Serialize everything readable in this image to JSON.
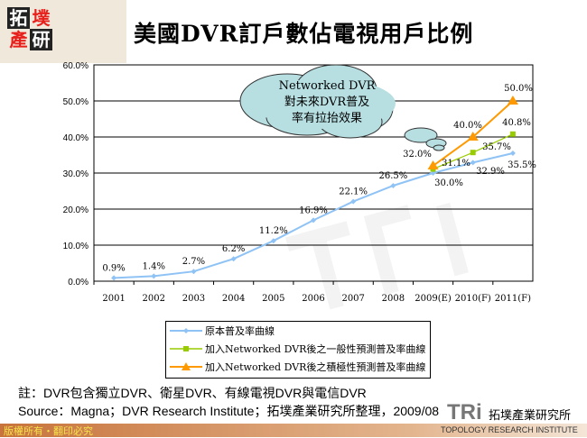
{
  "header": {
    "title": "美國DVR訂戶數佔電視用戶比例",
    "logo_text": "拓墣產研"
  },
  "chart_data": {
    "type": "line",
    "title": "美國DVR訂戶數佔電視用戶比例",
    "categories": [
      "2001",
      "2002",
      "2003",
      "2004",
      "2005",
      "2006",
      "2007",
      "2008",
      "2009(E)",
      "2010(F)",
      "2011(F)"
    ],
    "ylim": [
      0,
      60
    ],
    "yticks": [
      "0.0%",
      "10.0%",
      "20.0%",
      "30.0%",
      "40.0%",
      "50.0%",
      "60.0%"
    ],
    "grid": true,
    "legend_placement": "bottom",
    "series": [
      {
        "name": "原本普及率曲線",
        "color": "#8fc3f5",
        "marker": "diamond",
        "values": [
          0.9,
          1.4,
          2.7,
          6.2,
          11.2,
          16.9,
          22.1,
          26.5,
          30.0,
          32.9,
          35.5
        ],
        "labels": [
          "0.9%",
          "1.4%",
          "2.7%",
          "6.2%",
          "11.2%",
          "16.9%",
          "22.1%",
          "26.5%",
          "30.0%",
          "32.9%",
          "35.5%"
        ]
      },
      {
        "name": "加入Networked DVR後之一般性預測普及率曲線",
        "color": "#99cc00",
        "marker": "square",
        "values": [
          null,
          null,
          null,
          null,
          null,
          null,
          null,
          null,
          31.1,
          35.7,
          40.8
        ],
        "labels": [
          null,
          null,
          null,
          null,
          null,
          null,
          null,
          null,
          "31.1%",
          "35.7%",
          "40.8%"
        ]
      },
      {
        "name": "加入Networked DVR後之積極性預測普及率曲線",
        "color": "#ff9900",
        "marker": "triangle",
        "values": [
          null,
          null,
          null,
          null,
          null,
          null,
          null,
          null,
          32.0,
          40.0,
          50.0
        ],
        "labels": [
          null,
          null,
          null,
          null,
          null,
          null,
          null,
          null,
          "32.0%",
          "40.0%",
          "50.0%"
        ]
      }
    ],
    "annotation": [
      "Networked DVR",
      "對未來DVR普及",
      "率有拉抬效果"
    ]
  },
  "notes": {
    "line1": "註：DVR包含獨立DVR、衛星DVR、有線電視DVR與電信DVR",
    "line2": "Source：Magna；DVR Research Institute；拓墣產業研究所整理，2009/08"
  },
  "footer": {
    "copyright": "版權所有・翻印必究",
    "brand": "TRi",
    "brand_cn": "拓墣產業研究所",
    "brand_en": "TOPOLOGY RESEARCH INSTITUTE"
  },
  "colors": {
    "cloud": "#b7dfe2",
    "logo_red": "#e8201c"
  }
}
